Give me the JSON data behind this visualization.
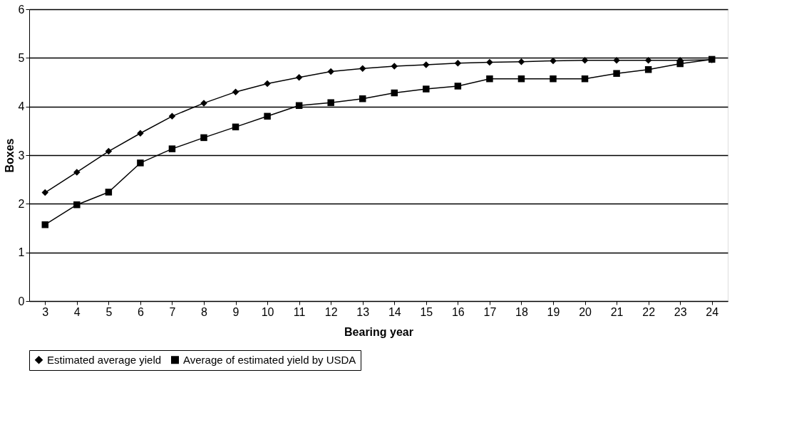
{
  "chart_data": {
    "type": "line",
    "xlabel": "Bearing year",
    "ylabel": "Boxes",
    "categories": [
      "3",
      "4",
      "5",
      "6",
      "7",
      "8",
      "9",
      "10",
      "11",
      "12",
      "13",
      "14",
      "15",
      "16",
      "17",
      "18",
      "19",
      "20",
      "21",
      "22",
      "23",
      "24"
    ],
    "series": [
      {
        "name": "Estimated average yield",
        "color": "#000000",
        "marker": "diamond",
        "values": [
          2.23,
          2.65,
          3.08,
          3.45,
          3.8,
          4.07,
          4.3,
          4.47,
          4.6,
          4.72,
          4.78,
          4.83,
          4.86,
          4.89,
          4.91,
          4.92,
          4.94,
          4.95,
          4.95,
          4.95,
          4.95,
          4.96
        ]
      },
      {
        "name": "Average of estimated yield by USDA",
        "color": "#000000",
        "marker": "square",
        "values": [
          1.57,
          1.98,
          2.24,
          2.84,
          3.13,
          3.36,
          3.58,
          3.8,
          4.02,
          4.08,
          4.16,
          4.28,
          4.36,
          4.42,
          4.57,
          4.57,
          4.57,
          4.57,
          4.68,
          4.76,
          4.88,
          4.97
        ]
      }
    ],
    "ylim": [
      0,
      6
    ],
    "yticks": [
      0,
      1,
      2,
      3,
      4,
      5,
      6
    ],
    "grid": "y",
    "legend": "bottom",
    "line_style": "solid"
  }
}
